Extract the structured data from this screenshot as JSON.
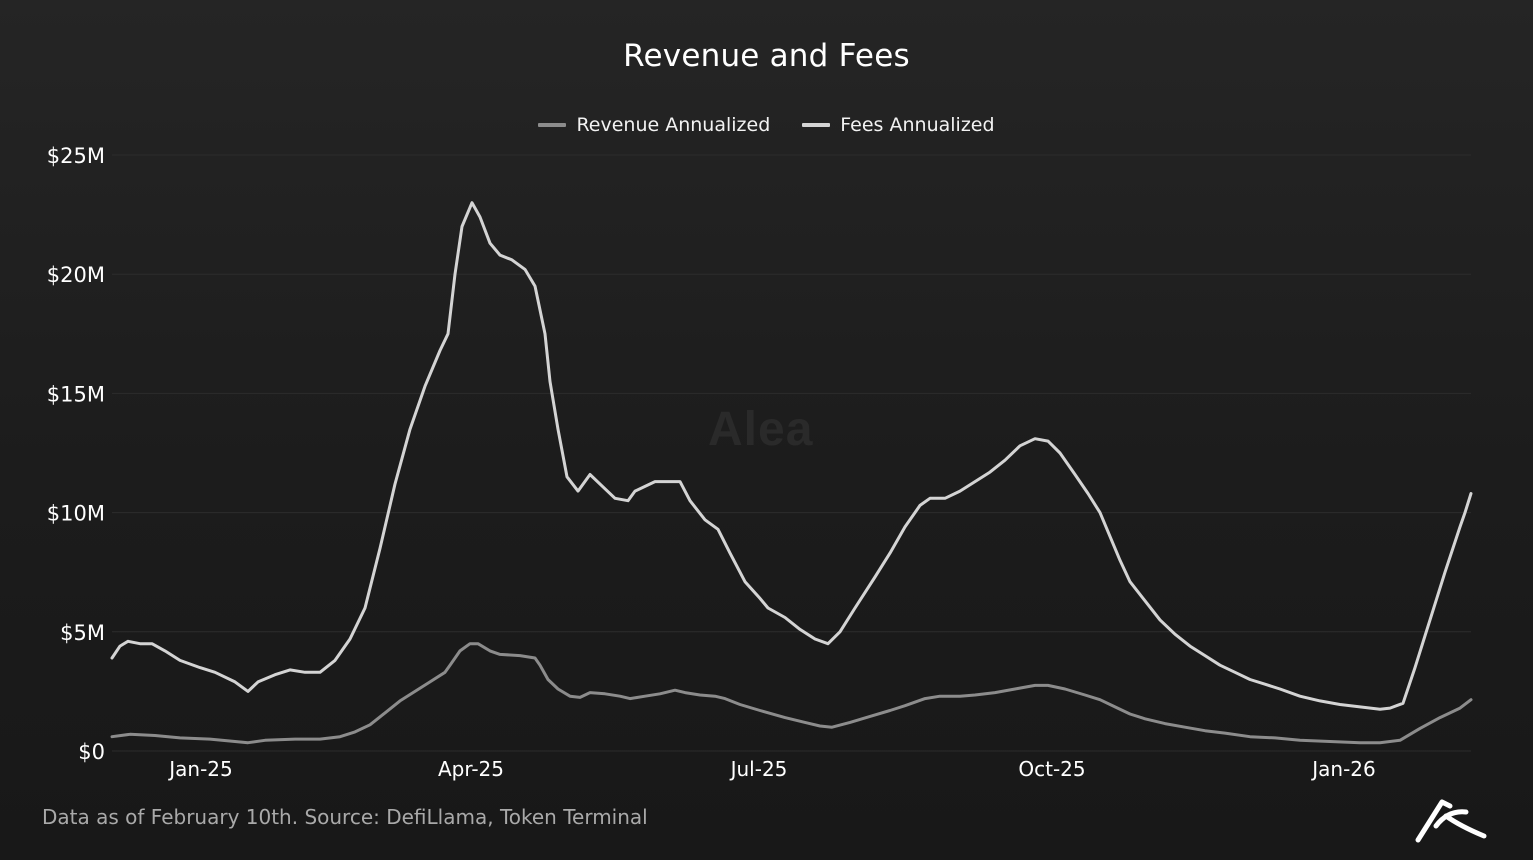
{
  "header": {
    "title": "Revenue and Fees"
  },
  "legend": {
    "items": [
      {
        "label": "Revenue Annualized",
        "color": "#8c8c8c"
      },
      {
        "label": "Fees Annualized",
        "color": "#d4d4d4"
      }
    ]
  },
  "watermark": "Alea",
  "footer": {
    "source": "Data as of February 10th. Source: DefiLlama, Token Terminal",
    "logo": "alea-logo-icon"
  },
  "colors": {
    "background": "#1e1e1e",
    "gridline": "#2c2c2c",
    "revenue_line": "#8c8c8c",
    "fees_line": "#d4d4d4"
  },
  "chart_data": {
    "type": "line",
    "title": "Revenue and Fees",
    "xlabel": "",
    "ylabel": "",
    "ylim": [
      0,
      25
    ],
    "y_unit": "$M",
    "y_ticks": [
      "$0",
      "$5M",
      "$10M",
      "$15M",
      "$20M",
      "$25M"
    ],
    "x_ticks": [
      "Jan-25",
      "Apr-25",
      "Jul-25",
      "Oct-25",
      "Jan-26"
    ],
    "grid": true,
    "legend_position": "top",
    "x": [
      "Dec-25-2024",
      "Dec-29-2024",
      "Jan-05-2025",
      "Jan-12-2025",
      "Jan-19-2025",
      "Jan-26-2025",
      "Feb-02-2025",
      "Feb-09-2025",
      "Feb-16-2025",
      "Feb-23-2025",
      "Mar-02-2025",
      "Mar-09-2025",
      "Mar-16-2025",
      "Mar-23-2025",
      "Mar-30-2025",
      "Apr-02-2025",
      "Apr-06-2025",
      "Apr-13-2025",
      "Apr-20-2025",
      "Apr-27-2025",
      "May-04-2025",
      "May-11-2025",
      "May-18-2025",
      "May-25-2025",
      "Jun-01-2025",
      "Jun-08-2025",
      "Jun-15-2025",
      "Jun-22-2025",
      "Jun-29-2025",
      "Jul-06-2025",
      "Jul-13-2025",
      "Jul-20-2025",
      "Jul-27-2025",
      "Aug-03-2025",
      "Aug-10-2025",
      "Aug-17-2025",
      "Aug-24-2025",
      "Aug-31-2025",
      "Sep-07-2025",
      "Sep-14-2025",
      "Sep-21-2025",
      "Sep-28-2025",
      "Oct-05-2025",
      "Oct-12-2025",
      "Oct-19-2025",
      "Oct-26-2025",
      "Nov-02-2025",
      "Nov-09-2025",
      "Nov-16-2025",
      "Nov-23-2025",
      "Nov-30-2025",
      "Dec-07-2025",
      "Dec-14-2025",
      "Dec-21-2025",
      "Dec-28-2025",
      "Jan-04-2026",
      "Jan-11-2026",
      "Jan-18-2026",
      "Jan-25-2026",
      "Feb-01-2026",
      "Feb-10-2026"
    ],
    "series": [
      {
        "name": "Fees Annualized",
        "color": "#d4d4d4",
        "points": [
          [
            112,
            3.9
          ],
          [
            120,
            4.4
          ],
          [
            128,
            4.6
          ],
          [
            140,
            4.5
          ],
          [
            152,
            4.5
          ],
          [
            165,
            4.2
          ],
          [
            180,
            3.8
          ],
          [
            200,
            3.5
          ],
          [
            215,
            3.3
          ],
          [
            235,
            2.9
          ],
          [
            248,
            2.5
          ],
          [
            258,
            2.9
          ],
          [
            275,
            3.2
          ],
          [
            290,
            3.4
          ],
          [
            305,
            3.3
          ],
          [
            320,
            3.3
          ],
          [
            335,
            3.8
          ],
          [
            350,
            4.7
          ],
          [
            365,
            6.0
          ],
          [
            380,
            8.5
          ],
          [
            395,
            11.2
          ],
          [
            410,
            13.5
          ],
          [
            425,
            15.3
          ],
          [
            440,
            16.8
          ],
          [
            448,
            17.5
          ],
          [
            455,
            20.0
          ],
          [
            462,
            22.0
          ],
          [
            472,
            23.0
          ],
          [
            480,
            22.4
          ],
          [
            490,
            21.3
          ],
          [
            500,
            20.8
          ],
          [
            512,
            20.6
          ],
          [
            525,
            20.2
          ],
          [
            535,
            19.5
          ],
          [
            545,
            17.5
          ],
          [
            550,
            15.5
          ],
          [
            558,
            13.5
          ],
          [
            567,
            11.5
          ],
          [
            578,
            10.9
          ],
          [
            590,
            11.6
          ],
          [
            605,
            11.0
          ],
          [
            615,
            10.6
          ],
          [
            628,
            10.5
          ],
          [
            635,
            10.9
          ],
          [
            645,
            11.1
          ],
          [
            655,
            11.3
          ],
          [
            668,
            11.3
          ],
          [
            680,
            11.3
          ],
          [
            690,
            10.5
          ],
          [
            705,
            9.7
          ],
          [
            718,
            9.3
          ],
          [
            730,
            8.3
          ],
          [
            745,
            7.1
          ],
          [
            760,
            6.4
          ],
          [
            768,
            6.0
          ],
          [
            785,
            5.6
          ],
          [
            800,
            5.1
          ],
          [
            815,
            4.7
          ],
          [
            828,
            4.5
          ],
          [
            840,
            5.0
          ],
          [
            855,
            6.0
          ],
          [
            875,
            7.3
          ],
          [
            890,
            8.3
          ],
          [
            905,
            9.4
          ],
          [
            920,
            10.3
          ],
          [
            930,
            10.6
          ],
          [
            945,
            10.6
          ],
          [
            960,
            10.9
          ],
          [
            975,
            11.3
          ],
          [
            990,
            11.7
          ],
          [
            1005,
            12.2
          ],
          [
            1020,
            12.8
          ],
          [
            1035,
            13.1
          ],
          [
            1048,
            13.0
          ],
          [
            1060,
            12.5
          ],
          [
            1075,
            11.6
          ],
          [
            1088,
            10.8
          ],
          [
            1100,
            10.0
          ],
          [
            1110,
            9.0
          ],
          [
            1120,
            8.0
          ],
          [
            1130,
            7.1
          ],
          [
            1145,
            6.3
          ],
          [
            1160,
            5.5
          ],
          [
            1175,
            4.9
          ],
          [
            1190,
            4.4
          ],
          [
            1205,
            4.0
          ],
          [
            1220,
            3.6
          ],
          [
            1235,
            3.3
          ],
          [
            1250,
            3.0
          ],
          [
            1265,
            2.8
          ],
          [
            1280,
            2.6
          ],
          [
            1300,
            2.3
          ],
          [
            1320,
            2.1
          ],
          [
            1340,
            1.95
          ],
          [
            1360,
            1.85
          ],
          [
            1380,
            1.75
          ],
          [
            1390,
            1.8
          ],
          [
            1403,
            2.0
          ],
          [
            1415,
            3.5
          ],
          [
            1430,
            5.5
          ],
          [
            1445,
            7.5
          ],
          [
            1460,
            9.4
          ],
          [
            1465,
            10.0
          ],
          [
            1471,
            10.8
          ]
        ]
      },
      {
        "name": "Revenue Annualized",
        "color": "#8c8c8c",
        "points": [
          [
            112,
            0.6
          ],
          [
            130,
            0.7
          ],
          [
            155,
            0.65
          ],
          [
            180,
            0.55
          ],
          [
            210,
            0.5
          ],
          [
            235,
            0.4
          ],
          [
            248,
            0.35
          ],
          [
            265,
            0.45
          ],
          [
            295,
            0.5
          ],
          [
            320,
            0.5
          ],
          [
            340,
            0.6
          ],
          [
            355,
            0.8
          ],
          [
            370,
            1.1
          ],
          [
            385,
            1.6
          ],
          [
            400,
            2.1
          ],
          [
            415,
            2.5
          ],
          [
            430,
            2.9
          ],
          [
            445,
            3.3
          ],
          [
            450,
            3.6
          ],
          [
            460,
            4.2
          ],
          [
            470,
            4.5
          ],
          [
            478,
            4.5
          ],
          [
            490,
            4.2
          ],
          [
            500,
            4.05
          ],
          [
            520,
            4.0
          ],
          [
            535,
            3.9
          ],
          [
            540,
            3.6
          ],
          [
            548,
            3.0
          ],
          [
            558,
            2.6
          ],
          [
            570,
            2.3
          ],
          [
            580,
            2.25
          ],
          [
            590,
            2.45
          ],
          [
            605,
            2.4
          ],
          [
            620,
            2.3
          ],
          [
            630,
            2.2
          ],
          [
            645,
            2.3
          ],
          [
            660,
            2.4
          ],
          [
            675,
            2.55
          ],
          [
            685,
            2.45
          ],
          [
            700,
            2.35
          ],
          [
            715,
            2.3
          ],
          [
            725,
            2.2
          ],
          [
            740,
            1.95
          ],
          [
            760,
            1.7
          ],
          [
            785,
            1.4
          ],
          [
            805,
            1.2
          ],
          [
            820,
            1.05
          ],
          [
            832,
            1.0
          ],
          [
            850,
            1.2
          ],
          [
            870,
            1.45
          ],
          [
            890,
            1.7
          ],
          [
            905,
            1.9
          ],
          [
            925,
            2.2
          ],
          [
            940,
            2.3
          ],
          [
            960,
            2.3
          ],
          [
            975,
            2.35
          ],
          [
            995,
            2.45
          ],
          [
            1015,
            2.6
          ],
          [
            1035,
            2.75
          ],
          [
            1048,
            2.75
          ],
          [
            1065,
            2.6
          ],
          [
            1085,
            2.35
          ],
          [
            1100,
            2.15
          ],
          [
            1115,
            1.85
          ],
          [
            1130,
            1.55
          ],
          [
            1145,
            1.35
          ],
          [
            1165,
            1.15
          ],
          [
            1185,
            1.0
          ],
          [
            1205,
            0.85
          ],
          [
            1225,
            0.75
          ],
          [
            1250,
            0.6
          ],
          [
            1275,
            0.55
          ],
          [
            1300,
            0.45
          ],
          [
            1330,
            0.4
          ],
          [
            1360,
            0.35
          ],
          [
            1380,
            0.35
          ],
          [
            1400,
            0.45
          ],
          [
            1420,
            0.95
          ],
          [
            1440,
            1.4
          ],
          [
            1460,
            1.8
          ],
          [
            1471,
            2.15
          ]
        ]
      }
    ]
  }
}
